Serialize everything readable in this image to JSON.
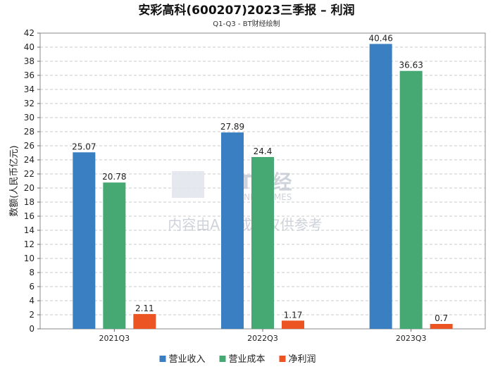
{
  "chart_data": {
    "type": "bar",
    "title": "安彩高科(600207)2023三季报 – 利润",
    "subtitle": "Q1-Q3 - BT财经绘制",
    "ylabel": "数额(人民币亿元)",
    "xlabel": "",
    "categories": [
      "2021Q3",
      "2022Q3",
      "2023Q3"
    ],
    "series": [
      {
        "name": "营业收入",
        "color": "#3a7fc1",
        "values": [
          25.07,
          27.89,
          40.46
        ],
        "labels": [
          "25.07",
          "27.89",
          "40.46"
        ]
      },
      {
        "name": "营业成本",
        "color": "#46a872",
        "values": [
          20.78,
          24.4,
          36.63
        ],
        "labels": [
          "20.78",
          "24.4",
          "36.63"
        ]
      },
      {
        "name": "净利润",
        "color": "#ec5424",
        "values": [
          2.11,
          1.17,
          0.7
        ],
        "labels": [
          "2.11",
          "1.17",
          "0.7"
        ]
      }
    ],
    "ylim": [
      0,
      42
    ],
    "ytick_step": 2,
    "grid": true,
    "legend_position": "bottom-center"
  },
  "watermark": {
    "brand": "BT财经",
    "brand_en": "BUSINESSTIMES",
    "notice": "内容由AI生成，仅供参考"
  }
}
